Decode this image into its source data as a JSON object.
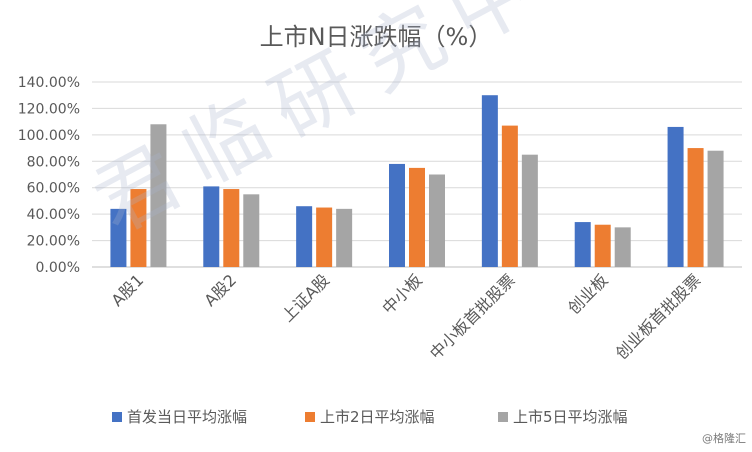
{
  "watermark": "君临研究中心",
  "credit": "@格隆汇",
  "colors": {
    "series": [
      "#4472C4",
      "#ED7D31",
      "#A5A5A5"
    ],
    "grid": "#d9d9d9",
    "text": "#595959"
  },
  "chart_data": {
    "type": "bar",
    "title": "上市N日涨跌幅（%）",
    "xlabel": "",
    "ylabel": "",
    "ylim": [
      0,
      140
    ],
    "yticks": [
      "0.00%",
      "20.00%",
      "40.00%",
      "60.00%",
      "80.00%",
      "100.00%",
      "120.00%",
      "140.00%"
    ],
    "grid": true,
    "legend": "bottom",
    "categories": [
      "A股1",
      "A股2",
      "上证A股",
      "中小板",
      "中小板首批股票",
      "创业板",
      "创业板首批股票"
    ],
    "series": [
      {
        "name": "首发当日平均涨幅",
        "values": [
          44,
          61,
          46,
          78,
          130,
          34,
          106
        ]
      },
      {
        "name": "上市2日平均涨幅",
        "values": [
          59,
          59,
          45,
          75,
          107,
          32,
          90
        ]
      },
      {
        "name": "上市5日平均涨幅",
        "values": [
          108,
          55,
          44,
          70,
          85,
          30,
          88
        ]
      }
    ]
  }
}
